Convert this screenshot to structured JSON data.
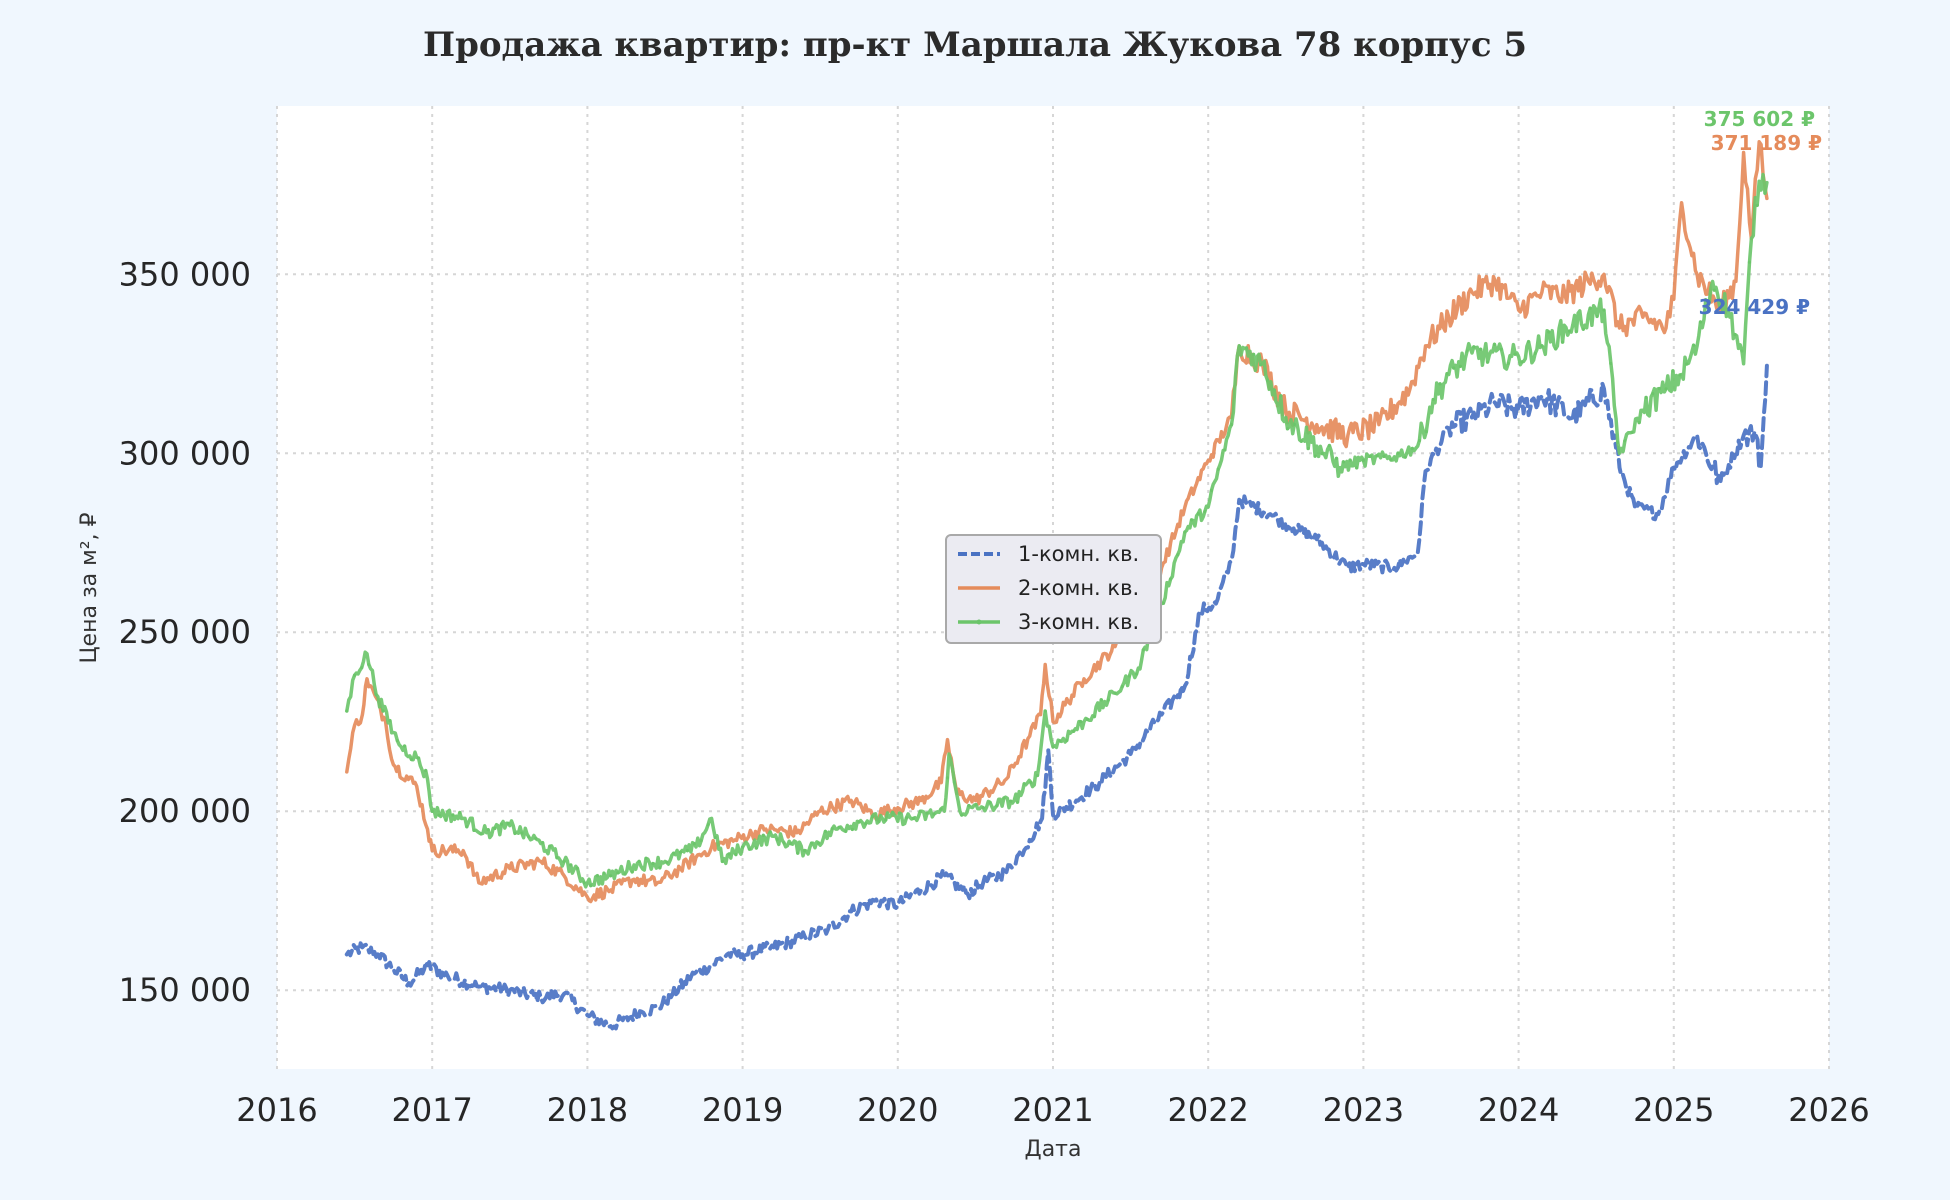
{
  "chart_data": {
    "type": "line",
    "title": "Продажа квартир: пр-кт Маршала Жукова 78 корпус 5",
    "xlabel": "Дата",
    "ylabel": "Цена за м², ₽",
    "xlim": [
      2016,
      2026
    ],
    "ylim": [
      128000,
      397000
    ],
    "x_ticks": [
      "2016",
      "2017",
      "2018",
      "2019",
      "2020",
      "2021",
      "2022",
      "2023",
      "2024",
      "2025",
      "2026"
    ],
    "y_ticks": [
      "150 000",
      "200 000",
      "250 000",
      "300 000",
      "350 000"
    ],
    "grid": true,
    "legend_position": "center",
    "series": [
      {
        "name": "1-комн. кв.",
        "color": "#4a72c3",
        "style": "dashed",
        "end_label": "324 429 ₽",
        "points": [
          [
            2016.45,
            160000
          ],
          [
            2016.55,
            162000
          ],
          [
            2016.65,
            160000
          ],
          [
            2016.75,
            156000
          ],
          [
            2016.85,
            152000
          ],
          [
            2016.97,
            157000
          ],
          [
            2017.1,
            154000
          ],
          [
            2017.3,
            151000
          ],
          [
            2017.5,
            150000
          ],
          [
            2017.7,
            148000
          ],
          [
            2017.85,
            149000
          ],
          [
            2018.0,
            143000
          ],
          [
            2018.15,
            140000
          ],
          [
            2018.35,
            144000
          ],
          [
            2018.45,
            145000
          ],
          [
            2018.55,
            149000
          ],
          [
            2018.7,
            155000
          ],
          [
            2018.8,
            157000
          ],
          [
            2018.9,
            160000
          ],
          [
            2019.0,
            160000
          ],
          [
            2019.2,
            162000
          ],
          [
            2019.4,
            165000
          ],
          [
            2019.55,
            167000
          ],
          [
            2019.7,
            172000
          ],
          [
            2019.85,
            175000
          ],
          [
            2020.0,
            174000
          ],
          [
            2020.15,
            178000
          ],
          [
            2020.3,
            182000
          ],
          [
            2020.45,
            177000
          ],
          [
            2020.55,
            180000
          ],
          [
            2020.7,
            183000
          ],
          [
            2020.85,
            192000
          ],
          [
            2020.93,
            198000
          ],
          [
            2020.97,
            217000
          ],
          [
            2021.0,
            199000
          ],
          [
            2021.15,
            203000
          ],
          [
            2021.3,
            208000
          ],
          [
            2021.5,
            216000
          ],
          [
            2021.7,
            227000
          ],
          [
            2021.85,
            235000
          ],
          [
            2021.95,
            256000
          ],
          [
            2022.05,
            258000
          ],
          [
            2022.15,
            270000
          ],
          [
            2022.2,
            287000
          ],
          [
            2022.4,
            283000
          ],
          [
            2022.55,
            279000
          ],
          [
            2022.7,
            276000
          ],
          [
            2022.9,
            268000
          ],
          [
            2023.0,
            269000
          ],
          [
            2023.2,
            268000
          ],
          [
            2023.35,
            272000
          ],
          [
            2023.4,
            295000
          ],
          [
            2023.55,
            307000
          ],
          [
            2023.7,
            310000
          ],
          [
            2023.85,
            314000
          ],
          [
            2024.0,
            312000
          ],
          [
            2024.15,
            316000
          ],
          [
            2024.35,
            310000
          ],
          [
            2024.55,
            318000
          ],
          [
            2024.65,
            296000
          ],
          [
            2024.75,
            285000
          ],
          [
            2024.9,
            283000
          ],
          [
            2025.0,
            296000
          ],
          [
            2025.15,
            305000
          ],
          [
            2025.3,
            292000
          ],
          [
            2025.45,
            305000
          ],
          [
            2025.52,
            306000
          ],
          [
            2025.56,
            296000
          ],
          [
            2025.6,
            324429
          ]
        ]
      },
      {
        "name": "2-комн. кв.",
        "color": "#e58b5b",
        "style": "solid",
        "end_label": "371 189 ₽",
        "points": [
          [
            2016.45,
            211000
          ],
          [
            2016.5,
            224000
          ],
          [
            2016.55,
            227000
          ],
          [
            2016.58,
            237000
          ],
          [
            2016.7,
            225000
          ],
          [
            2016.75,
            213000
          ],
          [
            2016.9,
            207000
          ],
          [
            2016.97,
            195000
          ],
          [
            2017.0,
            189000
          ],
          [
            2017.2,
            189000
          ],
          [
            2017.3,
            180000
          ],
          [
            2017.5,
            184000
          ],
          [
            2017.7,
            186000
          ],
          [
            2017.85,
            182000
          ],
          [
            2018.0,
            176000
          ],
          [
            2018.15,
            178000
          ],
          [
            2018.3,
            181000
          ],
          [
            2018.45,
            180000
          ],
          [
            2018.6,
            184000
          ],
          [
            2018.8,
            190000
          ],
          [
            2018.95,
            192000
          ],
          [
            2019.15,
            195000
          ],
          [
            2019.35,
            194000
          ],
          [
            2019.5,
            200000
          ],
          [
            2019.7,
            203000
          ],
          [
            2019.85,
            199000
          ],
          [
            2020.0,
            201000
          ],
          [
            2020.15,
            203000
          ],
          [
            2020.28,
            208000
          ],
          [
            2020.32,
            220000
          ],
          [
            2020.38,
            205000
          ],
          [
            2020.5,
            203000
          ],
          [
            2020.7,
            209000
          ],
          [
            2020.85,
            221000
          ],
          [
            2020.92,
            227000
          ],
          [
            2020.95,
            241000
          ],
          [
            2021.0,
            225000
          ],
          [
            2021.2,
            237000
          ],
          [
            2021.4,
            246000
          ],
          [
            2021.5,
            253000
          ],
          [
            2021.7,
            268000
          ],
          [
            2021.85,
            285000
          ],
          [
            2022.0,
            298000
          ],
          [
            2022.15,
            310000
          ],
          [
            2022.2,
            330000
          ],
          [
            2022.35,
            325000
          ],
          [
            2022.5,
            312000
          ],
          [
            2022.7,
            308000
          ],
          [
            2022.9,
            305000
          ],
          [
            2023.1,
            308000
          ],
          [
            2023.3,
            318000
          ],
          [
            2023.4,
            330000
          ],
          [
            2023.55,
            338000
          ],
          [
            2023.7,
            345000
          ],
          [
            2023.85,
            348000
          ],
          [
            2024.0,
            340000
          ],
          [
            2024.15,
            345000
          ],
          [
            2024.3,
            344000
          ],
          [
            2024.45,
            348000
          ],
          [
            2024.55,
            350000
          ],
          [
            2024.65,
            335000
          ],
          [
            2024.8,
            338000
          ],
          [
            2024.95,
            335000
          ],
          [
            2025.0,
            343000
          ],
          [
            2025.05,
            370000
          ],
          [
            2025.15,
            350000
          ],
          [
            2025.3,
            340000
          ],
          [
            2025.4,
            348000
          ],
          [
            2025.45,
            384000
          ],
          [
            2025.5,
            360000
          ],
          [
            2025.55,
            387000
          ],
          [
            2025.6,
            371189
          ]
        ]
      },
      {
        "name": "3-комн. кв.",
        "color": "#6cc56b",
        "style": "solid-dotted",
        "end_label": "375 602 ₽",
        "points": [
          [
            2016.45,
            228000
          ],
          [
            2016.5,
            238000
          ],
          [
            2016.58,
            244000
          ],
          [
            2016.65,
            232000
          ],
          [
            2016.75,
            222000
          ],
          [
            2016.8,
            218000
          ],
          [
            2016.9,
            215000
          ],
          [
            2016.97,
            209000
          ],
          [
            2017.0,
            200000
          ],
          [
            2017.2,
            198000
          ],
          [
            2017.35,
            194000
          ],
          [
            2017.5,
            196000
          ],
          [
            2017.7,
            191000
          ],
          [
            2017.85,
            186000
          ],
          [
            2018.0,
            180000
          ],
          [
            2018.15,
            182000
          ],
          [
            2018.3,
            185000
          ],
          [
            2018.5,
            186000
          ],
          [
            2018.7,
            190000
          ],
          [
            2018.8,
            198000
          ],
          [
            2018.87,
            186000
          ],
          [
            2019.0,
            190000
          ],
          [
            2019.2,
            193000
          ],
          [
            2019.4,
            189000
          ],
          [
            2019.6,
            195000
          ],
          [
            2019.75,
            197000
          ],
          [
            2019.9,
            198000
          ],
          [
            2020.1,
            198000
          ],
          [
            2020.3,
            200000
          ],
          [
            2020.33,
            216000
          ],
          [
            2020.4,
            200000
          ],
          [
            2020.55,
            201000
          ],
          [
            2020.75,
            203000
          ],
          [
            2020.9,
            210000
          ],
          [
            2020.95,
            228000
          ],
          [
            2021.0,
            218000
          ],
          [
            2021.2,
            225000
          ],
          [
            2021.4,
            233000
          ],
          [
            2021.55,
            240000
          ],
          [
            2021.7,
            258000
          ],
          [
            2021.85,
            278000
          ],
          [
            2022.0,
            285000
          ],
          [
            2022.15,
            308000
          ],
          [
            2022.2,
            330000
          ],
          [
            2022.35,
            325000
          ],
          [
            2022.5,
            310000
          ],
          [
            2022.7,
            302000
          ],
          [
            2022.85,
            296000
          ],
          [
            2023.0,
            298000
          ],
          [
            2023.2,
            299000
          ],
          [
            2023.35,
            302000
          ],
          [
            2023.45,
            315000
          ],
          [
            2023.55,
            322000
          ],
          [
            2023.7,
            328000
          ],
          [
            2023.9,
            327000
          ],
          [
            2024.0,
            327000
          ],
          [
            2024.15,
            330000
          ],
          [
            2024.35,
            336000
          ],
          [
            2024.55,
            340000
          ],
          [
            2024.65,
            300000
          ],
          [
            2024.8,
            312000
          ],
          [
            2024.95,
            318000
          ],
          [
            2025.05,
            322000
          ],
          [
            2025.15,
            330000
          ],
          [
            2025.25,
            348000
          ],
          [
            2025.35,
            340000
          ],
          [
            2025.45,
            325000
          ],
          [
            2025.5,
            360000
          ],
          [
            2025.55,
            376000
          ],
          [
            2025.6,
            375602
          ]
        ]
      }
    ]
  }
}
